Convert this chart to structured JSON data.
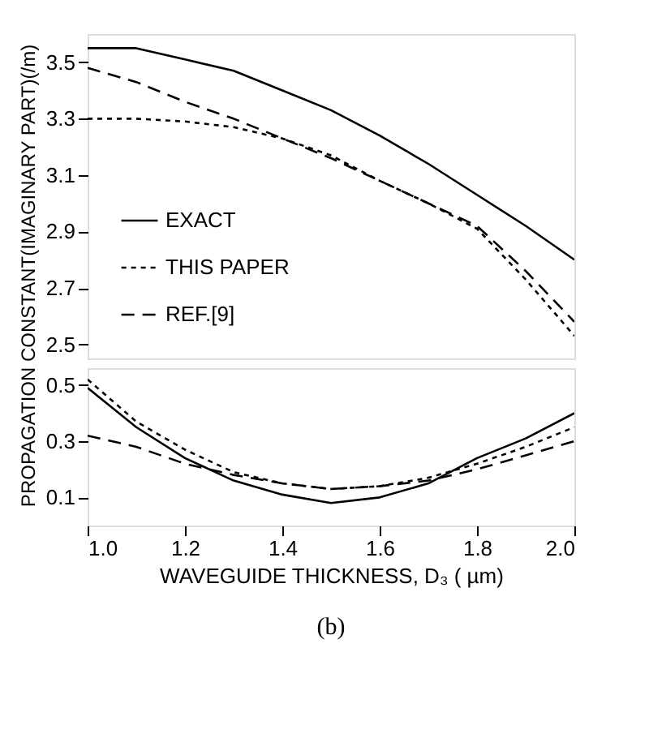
{
  "chart_data": [
    {
      "type": "line",
      "ylabel": "PROPAGATION CONSTANT(IMAGINARY PART)(/m)",
      "x": [
        1.0,
        1.1,
        1.2,
        1.3,
        1.4,
        1.5,
        1.6,
        1.7,
        1.8,
        1.9,
        2.0
      ],
      "xlim": [
        1.0,
        2.0
      ],
      "ylim": [
        2.45,
        3.6
      ],
      "yticks": [
        2.5,
        2.7,
        2.9,
        3.1,
        3.3,
        3.5
      ],
      "tick_labels": "y",
      "legend": "bottom left",
      "series": [
        {
          "name": "EXACT",
          "color": "#000000",
          "line_style": "solid",
          "values": [
            3.55,
            3.55,
            3.51,
            3.47,
            3.4,
            3.33,
            3.24,
            3.14,
            3.03,
            2.92,
            2.8
          ]
        },
        {
          "name": "THIS PAPER",
          "color": "#000000",
          "line_style": "dotted",
          "values": [
            3.3,
            3.3,
            3.29,
            3.27,
            3.23,
            3.17,
            3.08,
            3.0,
            2.91,
            2.73,
            2.53
          ]
        },
        {
          "name": "REF.[9]",
          "color": "#000000",
          "line_style": "dashed",
          "values": [
            3.48,
            3.43,
            3.36,
            3.3,
            3.23,
            3.16,
            3.08,
            3.0,
            2.92,
            2.76,
            2.58
          ]
        }
      ]
    },
    {
      "type": "line",
      "xlabel": "WAVEGUIDE THICKNESS, D₃ ( µm)",
      "x": [
        1.0,
        1.1,
        1.2,
        1.3,
        1.4,
        1.5,
        1.6,
        1.7,
        1.8,
        1.9,
        2.0
      ],
      "xlim": [
        1.0,
        2.0
      ],
      "xticks": [
        {
          "value": 1,
          "label": "1.0"
        },
        1.2,
        1.4,
        1.6,
        1.8,
        {
          "value": 2,
          "label": "2.0"
        }
      ],
      "ylim": [
        0,
        0.56
      ],
      "yticks": [
        0.1,
        0.3,
        0.5
      ],
      "annotations": [
        "(b)"
      ],
      "series": [
        {
          "color": "#000000",
          "line_style": "solid",
          "values": [
            0.49,
            0.35,
            0.24,
            0.16,
            0.11,
            0.08,
            0.1,
            0.15,
            0.24,
            0.31,
            0.4
          ]
        },
        {
          "color": "#000000",
          "line_style": "dotted",
          "values": [
            0.52,
            0.37,
            0.27,
            0.19,
            0.15,
            0.13,
            0.14,
            0.17,
            0.22,
            0.28,
            0.35
          ]
        },
        {
          "color": "#000000",
          "line_style": "dashed",
          "values": [
            0.32,
            0.28,
            0.22,
            0.18,
            0.15,
            0.13,
            0.14,
            0.16,
            0.2,
            0.25,
            0.3
          ]
        }
      ]
    }
  ]
}
